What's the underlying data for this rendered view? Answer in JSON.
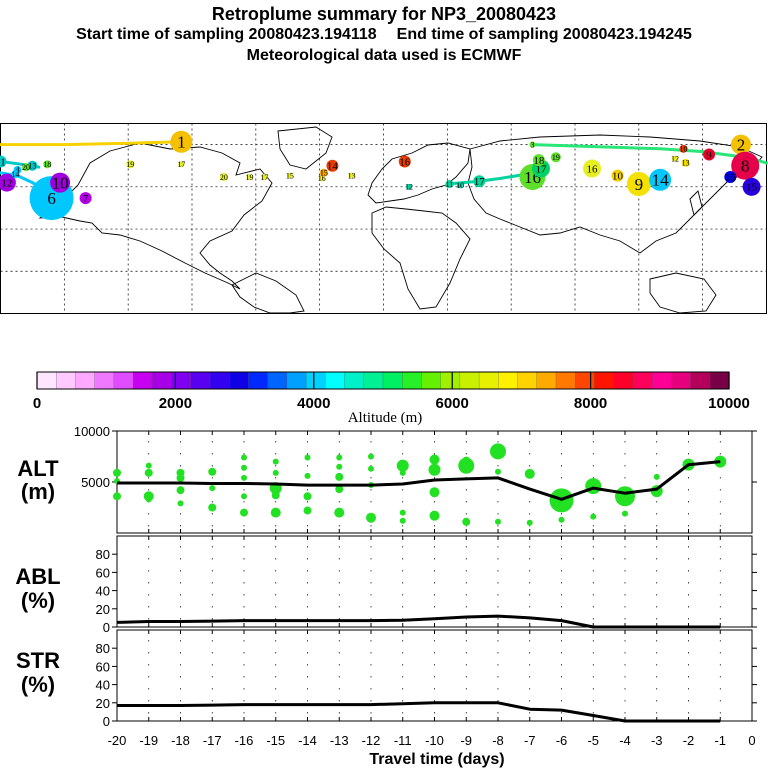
{
  "header": {
    "title": "Retroplume summary for NP3_20080423",
    "start_label": "Start time of sampling 20080423.194118",
    "end_label": "End time of sampling 20080423.194245",
    "met_label": "Meteorological data used is ECMWF"
  },
  "map": {
    "plume_labels": [
      {
        "text": "1",
        "lon": -95,
        "lat": 62,
        "color": "#f5c000",
        "r": 11
      },
      {
        "text": "2",
        "lon": 168,
        "lat": 60,
        "color": "#f5c000",
        "r": 10
      },
      {
        "text": "3",
        "lon": 70,
        "lat": 60,
        "color": "#5ee02a",
        "r": 3
      },
      {
        "text": "4",
        "lon": -172,
        "lat": 42,
        "color": "#00c8ff",
        "r": 4
      },
      {
        "text": "5",
        "lon": -160,
        "lat": 30,
        "color": "#00c8c8",
        "r": 6
      },
      {
        "text": "6",
        "lon": -156,
        "lat": 22,
        "color": "#00c8ff",
        "r": 22
      },
      {
        "text": "7",
        "lon": -140,
        "lat": 22,
        "color": "#b400e6",
        "r": 6
      },
      {
        "text": "8",
        "lon": 170,
        "lat": 45,
        "color": "#e6004a",
        "r": 14
      },
      {
        "text": "9",
        "lon": 120,
        "lat": 32,
        "color": "#f5e000",
        "r": 12
      },
      {
        "text": "10",
        "lon": -152,
        "lat": 33,
        "color": "#a000e0",
        "r": 10
      },
      {
        "text": "11",
        "lon": -180,
        "lat": 48,
        "color": "#00c8c8",
        "r": 6
      },
      {
        "text": "12",
        "lon": -177,
        "lat": 33,
        "color": "#a000e0",
        "r": 9
      },
      {
        "text": "13",
        "lon": -165,
        "lat": 45,
        "color": "#00c8c8",
        "r": 5
      },
      {
        "text": "14",
        "lon": -173,
        "lat": 39,
        "color": "#00c8ff",
        "r": 4
      },
      {
        "text": "15",
        "lon": -44,
        "lat": 38,
        "color": "#e8ef20",
        "r": 3
      },
      {
        "text": "16",
        "lon": 10,
        "lat": 48,
        "color": "#e63c00",
        "r": 6
      },
      {
        "text": "17",
        "lon": -95,
        "lat": 46,
        "color": "#e8ef20",
        "r": 3
      },
      {
        "text": "18",
        "lon": -158,
        "lat": 46,
        "color": "#5ee02a",
        "r": 4
      },
      {
        "text": "19",
        "lon": -119,
        "lat": 46,
        "color": "#e8ef20",
        "r": 4
      },
      {
        "text": "20",
        "lon": -168,
        "lat": 44,
        "color": "#5ee02a",
        "r": 4
      },
      {
        "text": "20",
        "lon": -75,
        "lat": 37,
        "color": "#e8ef20",
        "r": 4
      },
      {
        "text": "19",
        "lon": -63,
        "lat": 37,
        "color": "#e8ef20",
        "r": 3
      },
      {
        "text": "17",
        "lon": -56,
        "lat": 37,
        "color": "#e8ef20",
        "r": 3
      },
      {
        "text": "16",
        "lon": -29,
        "lat": 36,
        "color": "#e8ef20",
        "r": 3
      },
      {
        "text": "15",
        "lon": -28,
        "lat": 40,
        "color": "#f5a000",
        "r": 4
      },
      {
        "text": "14",
        "lon": -24,
        "lat": 45,
        "color": "#e63c00",
        "r": 6
      },
      {
        "text": "13",
        "lon": -15,
        "lat": 38,
        "color": "#e8ef20",
        "r": 3
      },
      {
        "text": "12",
        "lon": 12,
        "lat": 30,
        "color": "#00d2a0",
        "r": 3
      },
      {
        "text": "11",
        "lon": 31,
        "lat": 32,
        "color": "#00d2a0",
        "r": 4
      },
      {
        "text": "10",
        "lon": 36,
        "lat": 31,
        "color": "#00d2a0",
        "r": 3
      },
      {
        "text": "17",
        "lon": 45,
        "lat": 34,
        "color": "#00d29a",
        "r": 6
      },
      {
        "text": "16",
        "lon": 70,
        "lat": 37,
        "color": "#5ee02a",
        "r": 13
      },
      {
        "text": "17",
        "lon": 74,
        "lat": 43,
        "color": "#00d264",
        "r": 9
      },
      {
        "text": "18",
        "lon": 73,
        "lat": 49,
        "color": "#5ee02a",
        "r": 6
      },
      {
        "text": "19",
        "lon": 81,
        "lat": 51,
        "color": "#5ee02a",
        "r": 5
      },
      {
        "text": "16",
        "lon": 98,
        "lat": 43,
        "color": "#e8ef20",
        "r": 9
      },
      {
        "text": "10",
        "lon": 110,
        "lat": 38,
        "color": "#f5d000",
        "r": 6
      },
      {
        "text": "14",
        "lon": 130,
        "lat": 35,
        "color": "#00c8ff",
        "r": 11
      },
      {
        "text": "13",
        "lon": 142,
        "lat": 47,
        "color": "#f5e000",
        "r": 4
      },
      {
        "text": "12",
        "lon": 137,
        "lat": 50,
        "color": "#e8ef20",
        "r": 3
      },
      {
        "text": "10",
        "lon": 141,
        "lat": 57,
        "color": "#e63c00",
        "r": 4
      },
      {
        "text": "9",
        "lon": 153,
        "lat": 53,
        "color": "#e6002e",
        "r": 6
      },
      {
        "text": "16",
        "lon": 163,
        "lat": 37,
        "color": "#0000e0",
        "r": 6
      },
      {
        "text": "15",
        "lon": 173,
        "lat": 30,
        "color": "#2800e0",
        "r": 9
      }
    ]
  },
  "colorbar": {
    "tick_labels": [
      "0",
      "2000",
      "4000",
      "6000",
      "8000",
      "10000"
    ],
    "label": "Altitude (m)",
    "colors": [
      "#ffe6ff",
      "#ffcaff",
      "#ffa8ff",
      "#f078ff",
      "#e04cff",
      "#c800f0",
      "#a800e6",
      "#8000f0",
      "#5a00f0",
      "#3400f0",
      "#1000e6",
      "#0028ff",
      "#0064ff",
      "#00a0ff",
      "#00d2ff",
      "#00ffff",
      "#00f0c8",
      "#00f096",
      "#00f064",
      "#28f028",
      "#64f000",
      "#a0f000",
      "#c8f000",
      "#e6f000",
      "#fff000",
      "#ffd200",
      "#ffaa00",
      "#ff7800",
      "#ff4600",
      "#ff1400",
      "#ff0028",
      "#ff005a",
      "#ff0096",
      "#e6007d",
      "#b4005a",
      "#780046"
    ]
  },
  "chart_data": [
    {
      "type": "line",
      "title": "",
      "ylabel": "ALT (m)",
      "xlabel": "Travel time (days)",
      "x_ticks": [
        -20,
        -19,
        -18,
        -17,
        -16,
        -15,
        -14,
        -13,
        -12,
        -11,
        -10,
        -9,
        -8,
        -7,
        -6,
        -5,
        -4,
        -3,
        -2,
        -1,
        0
      ],
      "xlim": [
        -20,
        0
      ],
      "ylim": [
        0,
        10000
      ],
      "y_ticks": [
        5000,
        10000
      ],
      "series": [
        {
          "name": "mean altitude",
          "x": [
            -20,
            -19,
            -18,
            -17,
            -16,
            -15,
            -14,
            -13,
            -12,
            -11,
            -10,
            -9,
            -8,
            -7,
            -6,
            -5,
            -4,
            -3,
            -2,
            -1
          ],
          "values": [
            4900,
            4900,
            4900,
            4850,
            4850,
            4800,
            4700,
            4700,
            4700,
            4800,
            5200,
            5300,
            5400,
            4300,
            3300,
            4400,
            3900,
            4300,
            6700,
            7000
          ]
        }
      ],
      "cluster_dots": {
        "color": "#22e022",
        "points": [
          [
            -20,
            5900,
            4
          ],
          [
            -20,
            3600,
            4
          ],
          [
            -20,
            5100,
            3
          ],
          [
            -19,
            6600,
            3
          ],
          [
            -19,
            5900,
            4
          ],
          [
            -19,
            3600,
            5
          ],
          [
            -19,
            3300,
            3
          ],
          [
            -18,
            5900,
            4
          ],
          [
            -18,
            5400,
            4
          ],
          [
            -18,
            4200,
            4
          ],
          [
            -18,
            2900,
            3
          ],
          [
            -17,
            6000,
            4
          ],
          [
            -17,
            4400,
            3
          ],
          [
            -17,
            2500,
            4
          ],
          [
            -16,
            7400,
            3
          ],
          [
            -16,
            6400,
            3
          ],
          [
            -16,
            5400,
            3
          ],
          [
            -16,
            3600,
            3
          ],
          [
            -16,
            2000,
            4
          ],
          [
            -15,
            7000,
            3
          ],
          [
            -15,
            5900,
            3
          ],
          [
            -15,
            4400,
            6
          ],
          [
            -15,
            3700,
            4
          ],
          [
            -15,
            2000,
            5
          ],
          [
            -14,
            7400,
            3
          ],
          [
            -14,
            5600,
            3
          ],
          [
            -14,
            3600,
            4
          ],
          [
            -14,
            2200,
            4
          ],
          [
            -13,
            7400,
            3
          ],
          [
            -13,
            6500,
            3
          ],
          [
            -13,
            5500,
            4
          ],
          [
            -13,
            4300,
            4
          ],
          [
            -13,
            2000,
            5
          ],
          [
            -12,
            7500,
            3
          ],
          [
            -12,
            6300,
            3
          ],
          [
            -12,
            4700,
            3
          ],
          [
            -12,
            1500,
            5
          ],
          [
            -11,
            6600,
            6
          ],
          [
            -11,
            5900,
            3
          ],
          [
            -11,
            2000,
            3
          ],
          [
            -11,
            1200,
            3
          ],
          [
            -10,
            7200,
            5
          ],
          [
            -10,
            6200,
            6
          ],
          [
            -10,
            4000,
            5
          ],
          [
            -10,
            1700,
            5
          ],
          [
            -9,
            7100,
            4
          ],
          [
            -9,
            6600,
            8
          ],
          [
            -9,
            1100,
            4
          ],
          [
            -8,
            8000,
            8
          ],
          [
            -8,
            6000,
            3
          ],
          [
            -8,
            1100,
            3
          ],
          [
            -7,
            5800,
            5
          ],
          [
            -7,
            1000,
            3
          ],
          [
            -6,
            3200,
            12
          ],
          [
            -6,
            1300,
            3
          ],
          [
            -5,
            4600,
            8
          ],
          [
            -5,
            1600,
            3
          ],
          [
            -4,
            3600,
            10
          ],
          [
            -4,
            1900,
            3
          ],
          [
            -3,
            5500,
            3
          ],
          [
            -3,
            4100,
            6
          ],
          [
            -2,
            6700,
            6
          ],
          [
            -1,
            7000,
            6
          ]
        ]
      }
    },
    {
      "type": "line",
      "ylabel": "ABL (%)",
      "xlim": [
        -20,
        0
      ],
      "ylim": [
        0,
        100
      ],
      "y_ticks": [
        0,
        20,
        40,
        60,
        80
      ],
      "series": [
        {
          "name": "fraction in boundary layer",
          "x": [
            -20,
            -19,
            -18,
            -17,
            -16,
            -15,
            -14,
            -13,
            -12,
            -11,
            -10,
            -9,
            -8,
            -7,
            -6,
            -5,
            -4,
            -3,
            -2,
            -1
          ],
          "values": [
            5,
            6,
            6,
            6.5,
            7,
            7,
            7,
            7,
            7,
            7.5,
            9,
            11,
            12,
            10,
            7,
            0,
            0,
            0,
            0,
            0
          ]
        }
      ]
    },
    {
      "type": "line",
      "ylabel": "STR (%)",
      "xlim": [
        -20,
        0
      ],
      "ylim": [
        0,
        100
      ],
      "y_ticks": [
        0,
        20,
        40,
        60,
        80
      ],
      "series": [
        {
          "name": "fraction in stratosphere",
          "x": [
            -20,
            -19,
            -18,
            -17,
            -16,
            -15,
            -14,
            -13,
            -12,
            -11,
            -10,
            -9,
            -8,
            -7,
            -6,
            -5,
            -4,
            -3,
            -2,
            -1
          ],
          "values": [
            17,
            17,
            17,
            17.5,
            18,
            18,
            18,
            18,
            18,
            19,
            20,
            20,
            20,
            13,
            12,
            6,
            0,
            0,
            0,
            0
          ]
        }
      ]
    }
  ],
  "axes_text": {
    "alt_line1": "ALT",
    "alt_line2": "(m)",
    "abl_line1": "ABL",
    "abl_line2": "(%)",
    "str_line1": "STR",
    "str_line2": "(%)",
    "xlabel": "Travel time (days)"
  }
}
